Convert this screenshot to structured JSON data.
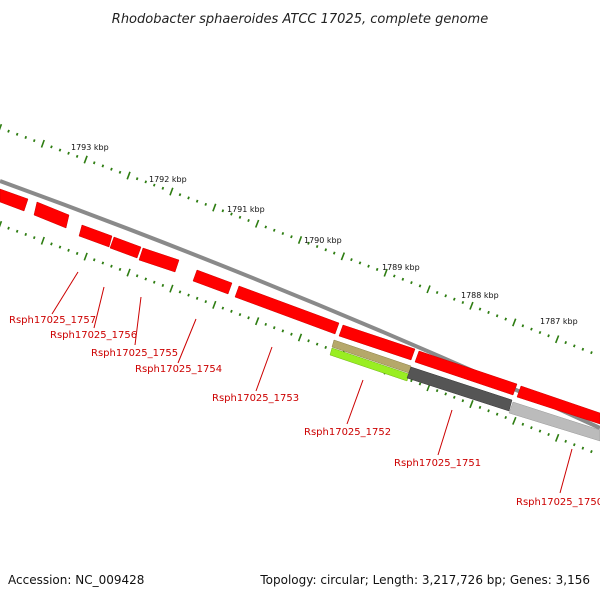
{
  "title": "Rhodobacter sphaeroides ATCC 17025, complete genome",
  "scale_ticks": [
    "1793 kbp",
    "1792 kbp",
    "1791 kbp",
    "1790 kbp",
    "1789 kbp",
    "1788 kbp",
    "1787 kbp"
  ],
  "genes": [
    {
      "label": "Rsph17025_1757"
    },
    {
      "label": "Rsph17025_1756"
    },
    {
      "label": "Rsph17025_1755"
    },
    {
      "label": "Rsph17025_1754"
    },
    {
      "label": "Rsph17025_1753"
    },
    {
      "label": "Rsph17025_1752"
    },
    {
      "label": "Rsph17025_1751"
    },
    {
      "label": "Rsph17025_1750"
    }
  ],
  "colors": {
    "cds": "#ff0000",
    "backbone": "#888888",
    "gc_ticks": "#2e7d12",
    "rna_olive": "#b5a86a",
    "rna_lime": "#99ee22",
    "dark_feature": "#555555",
    "light_feature": "#bbbbbb",
    "label": "#cc0000"
  },
  "footer": {
    "accession": "Accession: NC_009428",
    "topology": "Topology: circular; Length: 3,217,726 bp; Genes: 3,156"
  }
}
